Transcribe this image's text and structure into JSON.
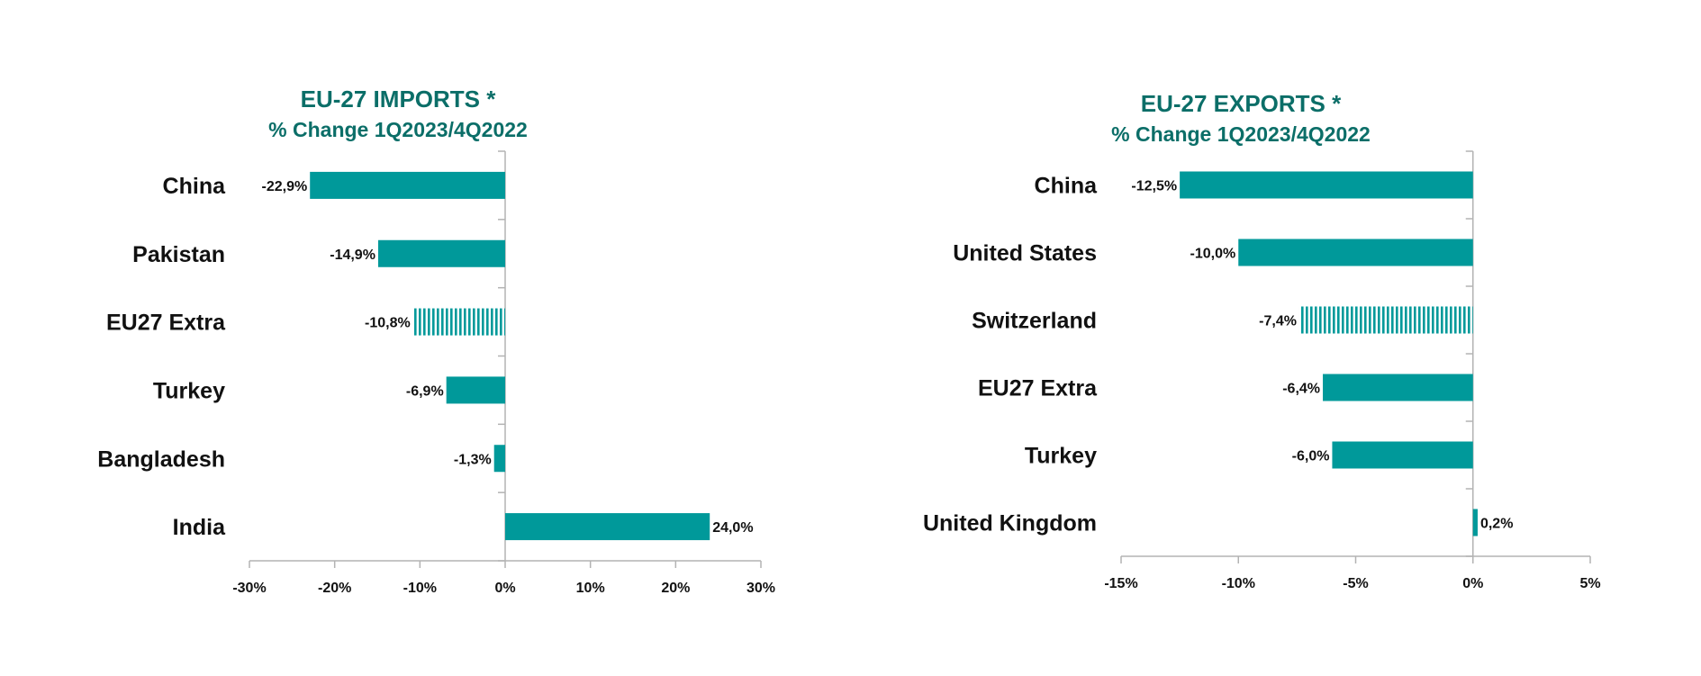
{
  "chart_data": [
    {
      "type": "bar",
      "orientation": "horizontal",
      "title": "EU-27 IMPORTS *",
      "subtitle": "% Change 1Q2023/4Q2022",
      "categories": [
        "China",
        "Pakistan",
        "EU27 Extra",
        "Turkey",
        "Bangladesh",
        "India"
      ],
      "values": [
        -22.9,
        -14.9,
        -10.8,
        -6.9,
        -1.3,
        24.0
      ],
      "value_labels": [
        "-22,9%",
        "-14,9%",
        "-10,8%",
        "-6,9%",
        "-1,3%",
        "24,0%"
      ],
      "highlighted": "EU27 Extra",
      "xlim": [
        -30,
        30
      ],
      "xticks": [
        -30,
        -20,
        -10,
        0,
        10,
        20,
        30
      ],
      "xtick_labels": [
        "-30%",
        "-20%",
        "-10%",
        "0%",
        "10%",
        "20%",
        "30%"
      ],
      "grid": false,
      "colors": {
        "bar": "#00999a",
        "highlight": "#00999a",
        "title": "#0b6e68"
      }
    },
    {
      "type": "bar",
      "orientation": "horizontal",
      "title": "EU-27 EXPORTS *",
      "subtitle": "% Change 1Q2023/4Q2022",
      "categories": [
        "China",
        "United States",
        "Switzerland",
        "EU27 Extra",
        "Turkey",
        "United Kingdom"
      ],
      "values": [
        -12.5,
        -10.0,
        -7.4,
        -6.4,
        -6.0,
        0.2
      ],
      "value_labels": [
        "-12,5%",
        "-10,0%",
        "-7,4%",
        "-6,4%",
        "-6,0%",
        "0,2%"
      ],
      "highlighted": "Switzerland",
      "xlim": [
        -15,
        5
      ],
      "xticks": [
        -15,
        -10,
        -5,
        0,
        5
      ],
      "xtick_labels": [
        "-15%",
        "-10%",
        "-5%",
        "0%",
        "5%"
      ],
      "grid": false,
      "colors": {
        "bar": "#00999a",
        "highlight": "#00999a",
        "title": "#0b6e68"
      }
    }
  ]
}
